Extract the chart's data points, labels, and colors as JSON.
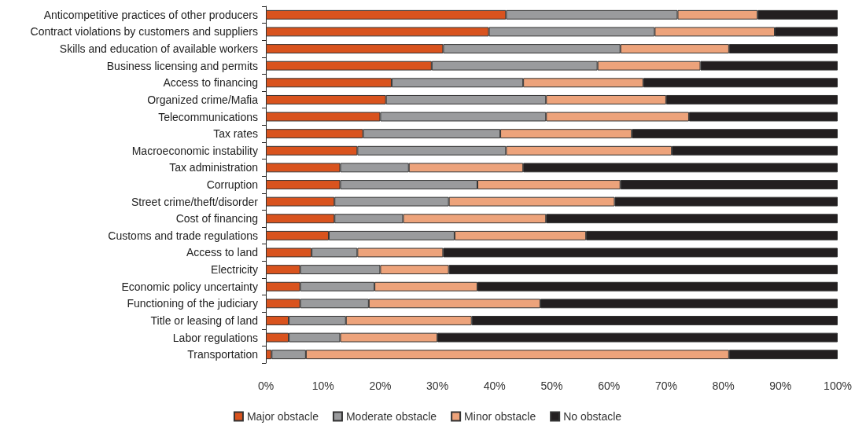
{
  "chart_data": {
    "type": "bar",
    "orientation": "horizontal",
    "stacked": true,
    "categories": [
      "Anticompetitive practices of other producers",
      "Contract violations by customers and suppliers",
      "Skills and education of available workers",
      "Business licensing and permits",
      "Access to financing",
      "Organized crime/Mafia",
      "Telecommunications",
      "Tax rates",
      "Macroeconomic instability",
      "Tax administration",
      "Corruption",
      "Street crime/theft/disorder",
      "Cost of financing",
      "Customs and trade regulations",
      "Access to land",
      "Electricity",
      "Economic policy uncertainty",
      "Functioning of the judiciary",
      "Title or leasing of land",
      "Labor regulations",
      "Transportation"
    ],
    "series": [
      {
        "name": "Major obstacle",
        "color": "#d9531e",
        "values": [
          42,
          39,
          31,
          29,
          22,
          21,
          20,
          17,
          16,
          13,
          13,
          12,
          12,
          11,
          8,
          6,
          6,
          6,
          4,
          4,
          1
        ]
      },
      {
        "name": "Moderate obstacle",
        "color": "#9a9b9d",
        "values": [
          30,
          29,
          31,
          29,
          23,
          28,
          29,
          24,
          26,
          12,
          24,
          20,
          12,
          22,
          8,
          14,
          13,
          12,
          10,
          9,
          6
        ]
      },
      {
        "name": "Minor obstacle",
        "color": "#eda37b",
        "values": [
          14,
          21,
          19,
          18,
          21,
          21,
          25,
          23,
          29,
          20,
          25,
          29,
          25,
          23,
          15,
          12,
          18,
          30,
          22,
          17,
          74
        ]
      },
      {
        "name": "No obstacle",
        "color": "#231f20",
        "values": [
          14,
          11,
          19,
          24,
          34,
          30,
          26,
          36,
          29,
          55,
          38,
          39,
          51,
          44,
          69,
          68,
          63,
          52,
          64,
          70,
          19
        ]
      }
    ],
    "xlim": [
      0,
      100
    ],
    "xticks": [
      {
        "value": 0,
        "label": "0%"
      },
      {
        "value": 10,
        "label": "10%"
      },
      {
        "value": 20,
        "label": "20%"
      },
      {
        "value": 30,
        "label": "30%"
      },
      {
        "value": 40,
        "label": "40%"
      },
      {
        "value": 50,
        "label": "50%"
      },
      {
        "value": 60,
        "label": "60%"
      },
      {
        "value": 70,
        "label": "70%"
      },
      {
        "value": 80,
        "label": "80%"
      },
      {
        "value": 90,
        "label": "90%"
      },
      {
        "value": 100,
        "label": "100%"
      }
    ],
    "grid": false,
    "legend": "bottom"
  }
}
